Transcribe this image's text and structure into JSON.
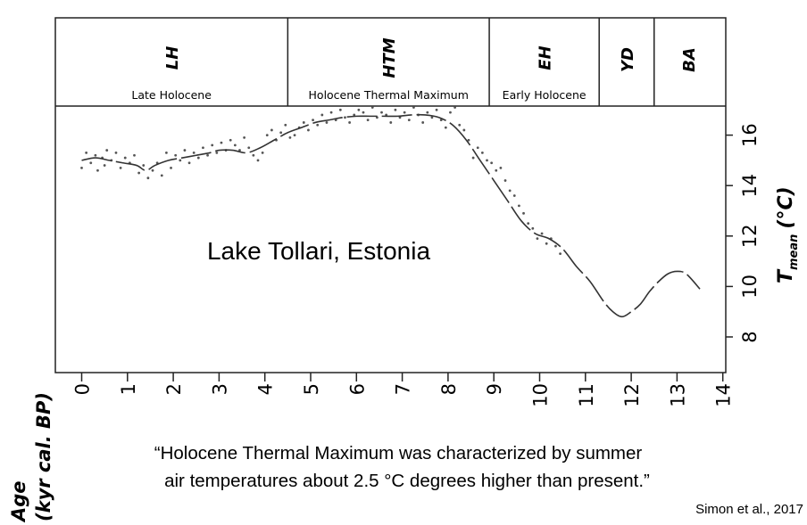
{
  "chart_data": {
    "type": "line",
    "title": "Lake Tollari, Estonia",
    "xlabel_line1": "Age",
    "xlabel_line2": "(kyr cal. BP)",
    "ylabel_main": "T",
    "ylabel_sub": "mean",
    "ylabel_unit": "(°C)",
    "xlim": [
      -0.6,
      14
    ],
    "ylim": [
      6.5,
      17.5
    ],
    "x_ticks": [
      0,
      1,
      2,
      3,
      4,
      5,
      6,
      7,
      8,
      9,
      10,
      11,
      12,
      13,
      14
    ],
    "y_ticks": [
      8,
      10,
      12,
      14,
      16
    ],
    "grid": false,
    "periods": [
      {
        "abbr": "LH",
        "name": "Late Holocene",
        "start": -0.6,
        "end": 4.5
      },
      {
        "abbr": "HTM",
        "name": "Holocene Thermal Maximum",
        "start": 4.5,
        "end": 8.9
      },
      {
        "abbr": "EH",
        "name": "Early Holocene",
        "start": 8.9,
        "end": 11.3
      },
      {
        "abbr": "YD",
        "name": "",
        "start": 11.3,
        "end": 12.5
      },
      {
        "abbr": "BA",
        "name": "",
        "start": 12.5,
        "end": 14
      }
    ],
    "series": [
      {
        "kind": "trend",
        "x": [
          0,
          0.3,
          0.6,
          0.9,
          1.2,
          1.4,
          1.6,
          1.9,
          2.2,
          2.5,
          2.8,
          3.0,
          3.3,
          3.6,
          3.9,
          4.2,
          4.5,
          4.8,
          5.1,
          5.4,
          5.7,
          6.0,
          6.3,
          6.6,
          6.9,
          7.2,
          7.5,
          7.8,
          8.1,
          8.4,
          8.7,
          9.0,
          9.3,
          9.6,
          9.9,
          10.2,
          10.5,
          10.8,
          11.1,
          11.4,
          11.6,
          11.8,
          12.0,
          12.2,
          12.4,
          12.6,
          12.8,
          13.0,
          13.2,
          13.5
        ],
        "y": [
          15.0,
          15.1,
          15.0,
          14.9,
          14.8,
          14.6,
          14.8,
          15.0,
          15.1,
          15.2,
          15.3,
          15.4,
          15.4,
          15.3,
          15.5,
          15.8,
          16.1,
          16.3,
          16.5,
          16.6,
          16.7,
          16.75,
          16.75,
          16.75,
          16.75,
          16.8,
          16.8,
          16.7,
          16.4,
          15.8,
          15.0,
          14.2,
          13.4,
          12.6,
          12.1,
          11.9,
          11.5,
          10.8,
          10.2,
          9.4,
          9.0,
          8.8,
          9.0,
          9.3,
          9.8,
          10.2,
          10.5,
          10.6,
          10.5,
          9.9
        ]
      },
      {
        "kind": "measurements",
        "x": [
          0,
          0.1,
          0.2,
          0.3,
          0.35,
          0.45,
          0.5,
          0.55,
          0.65,
          0.75,
          0.85,
          0.95,
          1.05,
          1.15,
          1.25,
          1.35,
          1.45,
          1.55,
          1.65,
          1.75,
          1.85,
          1.95,
          2.05,
          2.15,
          2.25,
          2.35,
          2.45,
          2.55,
          2.65,
          2.75,
          2.85,
          2.95,
          3.05,
          3.15,
          3.25,
          3.35,
          3.45,
          3.55,
          3.65,
          3.75,
          3.85,
          3.95,
          4.05,
          4.15,
          4.25,
          4.35,
          4.45,
          4.55,
          4.65,
          4.75,
          4.85,
          4.95,
          5.05,
          5.15,
          5.25,
          5.35,
          5.45,
          5.55,
          5.65,
          5.75,
          5.85,
          5.95,
          6.05,
          6.15,
          6.25,
          6.35,
          6.45,
          6.55,
          6.65,
          6.75,
          6.85,
          6.95,
          7.05,
          7.15,
          7.25,
          7.35,
          7.45,
          7.55,
          7.65,
          7.75,
          7.85,
          7.95,
          8.05,
          8.15,
          8.25,
          8.35,
          8.45,
          8.55,
          8.65,
          8.75,
          8.85,
          8.95,
          9.05,
          9.15,
          9.25,
          9.35,
          9.45,
          9.55,
          9.65,
          9.75,
          9.85,
          9.95,
          10.05,
          10.15,
          10.25,
          10.35,
          10.45
        ],
        "y": [
          14.7,
          15.3,
          14.9,
          15.2,
          14.6,
          15.1,
          14.8,
          15.4,
          15.0,
          15.3,
          14.7,
          15.1,
          14.9,
          15.2,
          14.5,
          14.8,
          14.3,
          14.6,
          14.9,
          14.4,
          15.3,
          14.7,
          15.2,
          15.0,
          15.4,
          14.9,
          15.3,
          15.1,
          15.5,
          15.2,
          15.6,
          15.3,
          15.7,
          15.4,
          15.8,
          15.6,
          15.4,
          15.9,
          15.5,
          15.2,
          15.0,
          15.3,
          16.0,
          16.2,
          15.8,
          16.1,
          16.4,
          15.9,
          16.0,
          16.3,
          16.5,
          16.2,
          16.6,
          16.4,
          16.8,
          16.5,
          16.9,
          16.6,
          17.0,
          16.7,
          16.5,
          16.8,
          17.0,
          16.9,
          16.6,
          17.1,
          16.7,
          16.9,
          16.8,
          16.5,
          17.0,
          16.7,
          16.9,
          16.6,
          17.1,
          16.8,
          16.5,
          16.9,
          16.7,
          17.0,
          16.6,
          16.3,
          16.9,
          17.1,
          16.4,
          16.2,
          15.8,
          15.1,
          15.5,
          15.3,
          15.0,
          14.9,
          14.6,
          14.7,
          14.2,
          13.8,
          13.6,
          13.2,
          12.9,
          12.5,
          12.3,
          11.9,
          12.1,
          11.7,
          11.9,
          11.6,
          11.3
        ]
      }
    ]
  },
  "quote": {
    "line1": "“Holocene Thermal Maximum was characterized by summer",
    "line2": "air temperatures about 2.5 °C degrees higher than present.”"
  },
  "citation": "Simon et al., 2017"
}
